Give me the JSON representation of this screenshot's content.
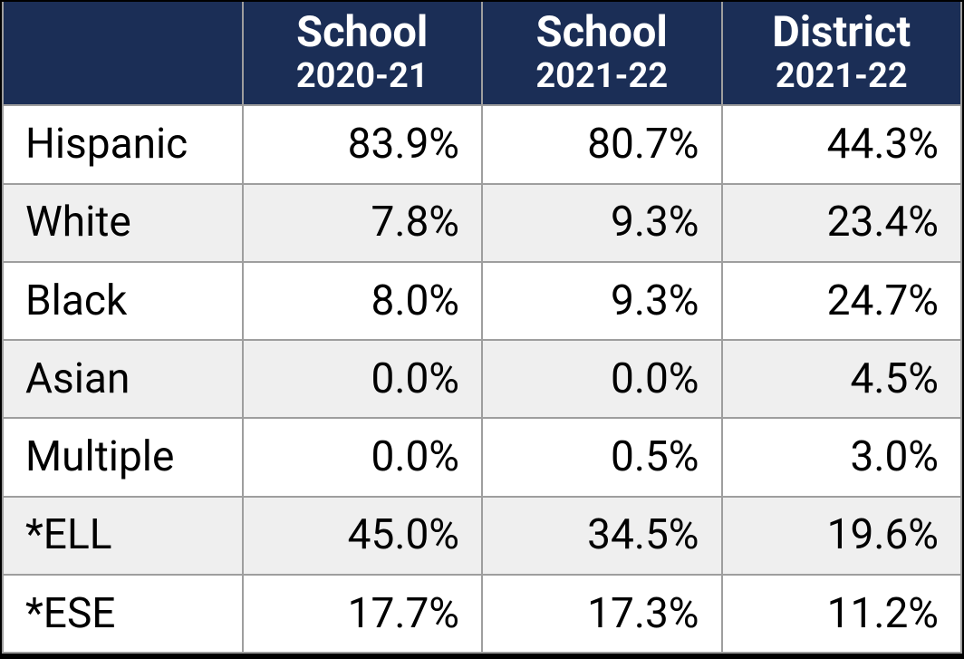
{
  "table": {
    "type": "table",
    "header_bg": "#1b2e56",
    "header_fg": "#ffffff",
    "row_alt_bg": "#efefef",
    "row_bg": "#ffffff",
    "border_color": "#9e9e9e",
    "outer_border_color": "#000000",
    "label_fontsize": 46,
    "cell_fontsize": 46,
    "header_title_fontsize": 47,
    "header_sub_fontsize": 38,
    "columns": [
      {
        "title": "School",
        "sub": "2020-21"
      },
      {
        "title": "School",
        "sub": "2021-22"
      },
      {
        "title": "District",
        "sub": "2021-22"
      }
    ],
    "rows": [
      {
        "label": "Hispanic",
        "values": [
          "83.9%",
          "80.7%",
          "44.3%"
        ]
      },
      {
        "label": "White",
        "values": [
          "7.8%",
          "9.3%",
          "23.4%"
        ]
      },
      {
        "label": "Black",
        "values": [
          "8.0%",
          "9.3%",
          "24.7%"
        ]
      },
      {
        "label": "Asian",
        "values": [
          "0.0%",
          "0.0%",
          "4.5%"
        ]
      },
      {
        "label": "Multiple",
        "values": [
          "0.0%",
          "0.5%",
          "3.0%"
        ]
      },
      {
        "label": "*ELL",
        "values": [
          "45.0%",
          "34.5%",
          "19.6%"
        ]
      },
      {
        "label": "*ESE",
        "values": [
          "17.7%",
          "17.3%",
          "11.2%"
        ]
      }
    ]
  }
}
